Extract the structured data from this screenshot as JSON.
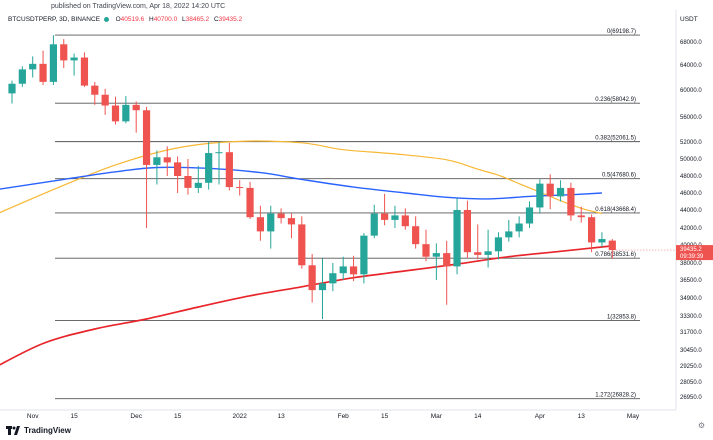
{
  "header": {
    "publisher": "published on TradingView.com, Apr 18, 2022 14:20 UTC",
    "symbol": "BTCUSDTPERP, 3D, BINANCE",
    "o_label": "O",
    "o_value": "40519.6",
    "h_label": "H",
    "h_value": "40700.0",
    "l_label": "L",
    "l_value": "38465.2",
    "c_label": "C",
    "c_value": "39435.2",
    "currency": "USDT"
  },
  "footer": {
    "brand": "TradingView"
  },
  "colors": {
    "up": "#26a69a",
    "down": "#ef5350",
    "ma_fast": "#f7b733",
    "ma_mid": "#2962ff",
    "ma_slow": "#e8252b",
    "fib": "#555555",
    "price_tag": "#ef5350"
  },
  "chart_data": {
    "type": "candlestick",
    "title": "BTCUSDTPERP, 3D, BINANCE",
    "ylim": [
      26000,
      70500
    ],
    "y_ticks": [
      68000,
      64000,
      60000,
      56000,
      52000,
      50000,
      48000,
      46000,
      44000,
      42000,
      40000,
      38000,
      36500,
      34900,
      33300,
      31700,
      30450,
      29250,
      28050,
      26950
    ],
    "y_tick_labels": [
      "68000.0",
      "64000.0",
      "60000.0",
      "56000.0",
      "52000.0",
      "50000.0",
      "48000.0",
      "46000.0",
      "44000.0",
      "42000.0",
      "40000.0",
      "38000.0",
      "36500.0",
      "34900.0",
      "33300.0",
      "31700.0",
      "30450.0",
      "29250.0",
      "28050.0",
      "26950.0"
    ],
    "x_ticks": [
      {
        "bar": 2,
        "label": "Nov"
      },
      {
        "bar": 6,
        "label": "15"
      },
      {
        "bar": 12,
        "label": "Dec"
      },
      {
        "bar": 16,
        "label": "15"
      },
      {
        "bar": 22,
        "label": "2022"
      },
      {
        "bar": 26,
        "label": "13"
      },
      {
        "bar": 32,
        "label": "Feb"
      },
      {
        "bar": 36,
        "label": "15"
      },
      {
        "bar": 41,
        "label": "Mar"
      },
      {
        "bar": 45,
        "label": "14"
      },
      {
        "bar": 51,
        "label": "Apr"
      },
      {
        "bar": 55,
        "label": "13"
      },
      {
        "bar": 60,
        "label": "May"
      }
    ],
    "candles": [
      {
        "o": 59500,
        "h": 61500,
        "l": 58000,
        "c": 61000
      },
      {
        "o": 61000,
        "h": 63800,
        "l": 60500,
        "c": 63300
      },
      {
        "o": 63300,
        "h": 65500,
        "l": 62000,
        "c": 64200
      },
      {
        "o": 64200,
        "h": 66500,
        "l": 60800,
        "c": 61300
      },
      {
        "o": 61300,
        "h": 69198,
        "l": 60800,
        "c": 67600
      },
      {
        "o": 67600,
        "h": 68500,
        "l": 63500,
        "c": 64800
      },
      {
        "o": 64800,
        "h": 66000,
        "l": 62300,
        "c": 65300
      },
      {
        "o": 65300,
        "h": 66200,
        "l": 60500,
        "c": 60700
      },
      {
        "o": 60700,
        "h": 61300,
        "l": 57800,
        "c": 59300
      },
      {
        "o": 59300,
        "h": 60200,
        "l": 56300,
        "c": 57700
      },
      {
        "o": 57700,
        "h": 59000,
        "l": 54800,
        "c": 55300
      },
      {
        "o": 55300,
        "h": 59100,
        "l": 55000,
        "c": 57800
      },
      {
        "o": 57800,
        "h": 58300,
        "l": 53500,
        "c": 57000
      },
      {
        "o": 57000,
        "h": 57500,
        "l": 42000,
        "c": 49300
      },
      {
        "o": 49300,
        "h": 51000,
        "l": 47000,
        "c": 50200
      },
      {
        "o": 50200,
        "h": 51500,
        "l": 48000,
        "c": 49600
      },
      {
        "o": 49600,
        "h": 50300,
        "l": 46000,
        "c": 48000
      },
      {
        "o": 48000,
        "h": 50000,
        "l": 45800,
        "c": 46600
      },
      {
        "o": 46600,
        "h": 49200,
        "l": 46000,
        "c": 47200
      },
      {
        "o": 47200,
        "h": 52000,
        "l": 46400,
        "c": 50700
      },
      {
        "o": 50700,
        "h": 52000,
        "l": 47000,
        "c": 50800
      },
      {
        "o": 50800,
        "h": 51900,
        "l": 46300,
        "c": 46700
      },
      {
        "o": 46700,
        "h": 47500,
        "l": 45700,
        "c": 46600
      },
      {
        "o": 46600,
        "h": 47300,
        "l": 43000,
        "c": 43200
      },
      {
        "o": 43200,
        "h": 44500,
        "l": 40500,
        "c": 41600
      },
      {
        "o": 41600,
        "h": 44500,
        "l": 39600,
        "c": 43600
      },
      {
        "o": 43600,
        "h": 44200,
        "l": 42500,
        "c": 43100
      },
      {
        "o": 43100,
        "h": 43600,
        "l": 40800,
        "c": 42400
      },
      {
        "o": 42400,
        "h": 43300,
        "l": 37500,
        "c": 37800
      },
      {
        "o": 37800,
        "h": 39000,
        "l": 34500,
        "c": 35600
      },
      {
        "o": 35600,
        "h": 38500,
        "l": 33000,
        "c": 36200
      },
      {
        "o": 36200,
        "h": 38000,
        "l": 35500,
        "c": 37100
      },
      {
        "o": 37100,
        "h": 38700,
        "l": 36500,
        "c": 37700
      },
      {
        "o": 37700,
        "h": 38800,
        "l": 36400,
        "c": 37000
      },
      {
        "o": 37000,
        "h": 41400,
        "l": 36200,
        "c": 41100
      },
      {
        "o": 41100,
        "h": 44600,
        "l": 40800,
        "c": 43600
      },
      {
        "o": 43600,
        "h": 45900,
        "l": 42300,
        "c": 42900
      },
      {
        "o": 42900,
        "h": 44500,
        "l": 42000,
        "c": 43400
      },
      {
        "o": 43400,
        "h": 44200,
        "l": 41800,
        "c": 42200
      },
      {
        "o": 42200,
        "h": 43300,
        "l": 39600,
        "c": 40100
      },
      {
        "o": 40100,
        "h": 41800,
        "l": 38200,
        "c": 38700
      },
      {
        "o": 38700,
        "h": 40200,
        "l": 36500,
        "c": 39100
      },
      {
        "o": 39100,
        "h": 40500,
        "l": 34300,
        "c": 37700
      },
      {
        "o": 37700,
        "h": 45400,
        "l": 37000,
        "c": 44000
      },
      {
        "o": 44000,
        "h": 45100,
        "l": 38500,
        "c": 39200
      },
      {
        "o": 39200,
        "h": 42400,
        "l": 38400,
        "c": 38900
      },
      {
        "o": 38900,
        "h": 41800,
        "l": 37600,
        "c": 39300
      },
      {
        "o": 39300,
        "h": 41500,
        "l": 38400,
        "c": 40900
      },
      {
        "o": 40900,
        "h": 42900,
        "l": 40400,
        "c": 41600
      },
      {
        "o": 41600,
        "h": 43300,
        "l": 40900,
        "c": 42500
      },
      {
        "o": 42500,
        "h": 45000,
        "l": 42000,
        "c": 44300
      },
      {
        "o": 44300,
        "h": 47600,
        "l": 43600,
        "c": 47100
      },
      {
        "o": 47100,
        "h": 48200,
        "l": 44100,
        "c": 45600
      },
      {
        "o": 45600,
        "h": 47500,
        "l": 45000,
        "c": 46600
      },
      {
        "o": 46600,
        "h": 47200,
        "l": 42800,
        "c": 43400
      },
      {
        "o": 43400,
        "h": 44400,
        "l": 42600,
        "c": 43200
      },
      {
        "o": 43200,
        "h": 43500,
        "l": 39200,
        "c": 40300
      },
      {
        "o": 40300,
        "h": 41500,
        "l": 39800,
        "c": 40700
      },
      {
        "o": 40519.6,
        "h": 40700,
        "l": 38465.2,
        "c": 39435.2
      }
    ],
    "series": [
      {
        "name": "MA fast (orange)",
        "anchors": [
          [
            -2,
            43300
          ],
          [
            4,
            46400
          ],
          [
            10,
            49300
          ],
          [
            16,
            51300
          ],
          [
            22,
            52100
          ],
          [
            28,
            51900
          ],
          [
            32,
            51100
          ],
          [
            37,
            50600
          ],
          [
            42,
            49900
          ],
          [
            45,
            48800
          ],
          [
            47,
            48100
          ],
          [
            49,
            47100
          ],
          [
            51,
            46100
          ],
          [
            53,
            45100
          ],
          [
            55,
            44200
          ],
          [
            57,
            43600
          ]
        ]
      },
      {
        "name": "MA mid (blue)",
        "anchors": [
          [
            -2,
            46300
          ],
          [
            5,
            47600
          ],
          [
            10,
            48500
          ],
          [
            14,
            49000
          ],
          [
            19,
            48900
          ],
          [
            24,
            48400
          ],
          [
            28,
            47600
          ],
          [
            33,
            46700
          ],
          [
            38,
            46000
          ],
          [
            42,
            45500
          ],
          [
            46,
            45300
          ],
          [
            50,
            45600
          ],
          [
            54,
            45800
          ],
          [
            57,
            46000
          ]
        ]
      },
      {
        "name": "MA slow (red)",
        "anchors": [
          [
            -2,
            29000
          ],
          [
            3,
            30900
          ],
          [
            8,
            32000
          ],
          [
            13,
            33000
          ],
          [
            18,
            34100
          ],
          [
            23,
            35100
          ],
          [
            28,
            35900
          ],
          [
            33,
            36700
          ],
          [
            38,
            37300
          ],
          [
            43,
            37900
          ],
          [
            48,
            38700
          ],
          [
            53,
            39300
          ],
          [
            58,
            39900
          ]
        ]
      }
    ],
    "fib_levels": [
      {
        "label": "0(69198.7)",
        "value": 69198.7
      },
      {
        "label": "0.236(58042.9)",
        "value": 58042.9
      },
      {
        "label": "0.382(52061.5)",
        "value": 52061.5
      },
      {
        "label": "0.5(47680.6)",
        "value": 47680.6
      },
      {
        "label": "0.618(43668.4)",
        "value": 43668.4
      },
      {
        "label": "0.786(38531.6)",
        "value": 38531.6
      },
      {
        "label": "1(32853.8)",
        "value": 32853.8
      },
      {
        "label": "1.272(26828.2)",
        "value": 26828.2
      }
    ],
    "price_tag": {
      "value": 39435.2,
      "label": "39435.2",
      "countdown": "09:39:39"
    }
  }
}
